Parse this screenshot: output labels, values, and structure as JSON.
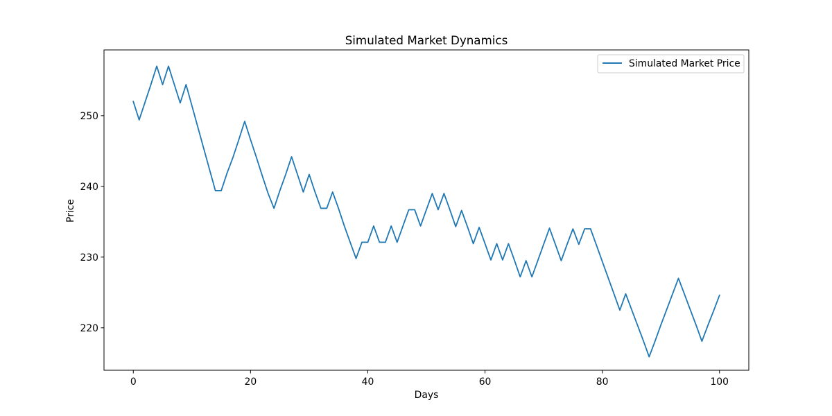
{
  "chart_data": {
    "type": "line",
    "title": "Simulated Market Dynamics",
    "xlabel": "Days",
    "ylabel": "Price",
    "xlim": [
      -5,
      105
    ],
    "ylim": [
      214,
      259.3
    ],
    "xticks": [
      0,
      20,
      40,
      60,
      80,
      100
    ],
    "yticks": [
      220,
      230,
      240,
      250
    ],
    "grid": false,
    "legend_position": "top-right",
    "series": [
      {
        "name": "Simulated Market Price",
        "color": "#1f77b4",
        "x": [
          0,
          1,
          2,
          3,
          4,
          5,
          6,
          7,
          8,
          9,
          10,
          11,
          12,
          13,
          14,
          15,
          16,
          17,
          18,
          19,
          20,
          21,
          22,
          23,
          24,
          25,
          26,
          27,
          28,
          29,
          30,
          31,
          32,
          33,
          34,
          35,
          36,
          37,
          38,
          39,
          40,
          41,
          42,
          43,
          44,
          45,
          46,
          47,
          48,
          49,
          50,
          51,
          52,
          53,
          54,
          55,
          56,
          57,
          58,
          59,
          60,
          61,
          62,
          63,
          64,
          65,
          66,
          67,
          68,
          69,
          70,
          71,
          72,
          73,
          74,
          75,
          76,
          77,
          78,
          79,
          80,
          81,
          82,
          83,
          84,
          85,
          86,
          87,
          88,
          89,
          90,
          91,
          92,
          93,
          94,
          95,
          96,
          97,
          98,
          99,
          100
        ],
        "values": [
          252.0,
          249.4,
          251.9,
          254.4,
          257.0,
          254.4,
          257.0,
          254.4,
          251.8,
          254.4,
          251.4,
          248.4,
          245.4,
          242.4,
          239.4,
          239.4,
          241.9,
          244.1,
          246.6,
          249.2,
          246.6,
          244.1,
          241.5,
          239.0,
          236.9,
          239.4,
          241.7,
          244.2,
          241.7,
          239.2,
          241.7,
          239.2,
          236.9,
          236.9,
          239.2,
          236.9,
          234.4,
          232.1,
          229.8,
          232.1,
          232.1,
          234.4,
          232.1,
          232.1,
          234.4,
          232.1,
          234.4,
          236.7,
          236.7,
          234.4,
          236.7,
          239.0,
          236.7,
          239.0,
          236.7,
          234.3,
          236.6,
          234.3,
          231.9,
          234.2,
          231.9,
          229.6,
          231.9,
          229.6,
          231.9,
          229.6,
          227.2,
          229.5,
          227.2,
          229.5,
          231.8,
          234.1,
          231.8,
          229.5,
          231.8,
          234.0,
          231.8,
          234.0,
          234.0,
          231.7,
          229.4,
          227.1,
          224.8,
          222.5,
          224.8,
          222.6,
          220.4,
          218.2,
          215.9,
          218.1,
          220.4,
          222.6,
          224.8,
          227.0,
          224.8,
          222.6,
          220.4,
          218.1,
          220.3,
          222.4,
          224.6
        ]
      }
    ]
  }
}
